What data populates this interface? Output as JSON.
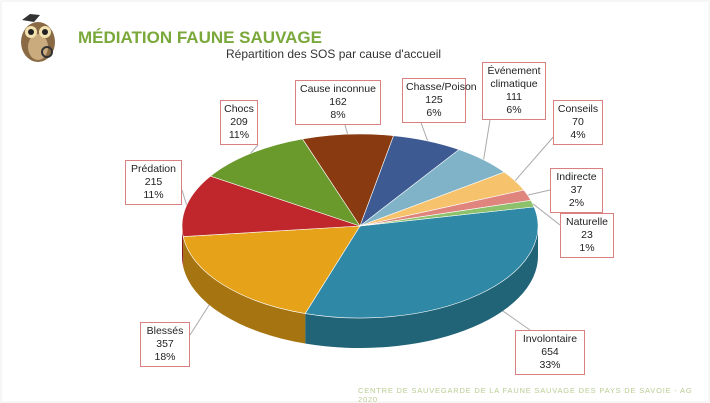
{
  "chart_data": {
    "type": "pie",
    "title": "MÉDIATION FAUNE SAUVAGE",
    "subtitle": "Répartition des SOS par cause d'accueil",
    "footer": "CENTRE DE SAUVEGARDE DE LA FAUNE SAUVAGE DES PAYS DE SAVOIE - AG 2020",
    "categories": [
      "Involontaire",
      "Blessés",
      "Prédation",
      "Chocs",
      "Cause inconnue",
      "Chasse/Poison",
      "Événement climatique",
      "Conseils",
      "Indirecte",
      "Naturelle"
    ],
    "values": [
      654,
      357,
      215,
      209,
      162,
      125,
      111,
      70,
      37,
      23
    ],
    "value_labels": [
      "33%",
      "18%",
      "11%",
      "11%",
      "8%",
      "6%",
      "6%",
      "4%",
      "2%",
      "1%"
    ],
    "colors": [
      "#2f89a6",
      "#e6a319",
      "#bf272c",
      "#6b9a2c",
      "#8a3a10",
      "#3d5a92",
      "#80b3c8",
      "#f6c36c",
      "#df857d",
      "#8dc16b"
    ]
  }
}
